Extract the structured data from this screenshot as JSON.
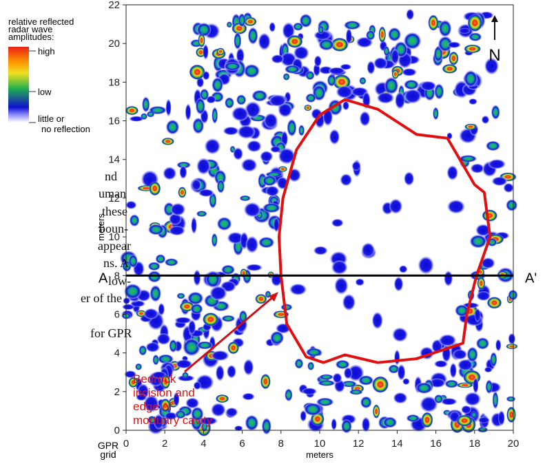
{
  "chart_data": {
    "type": "heatmap",
    "xlabel": "meters",
    "ylabel": "meters",
    "corner_label": [
      "GPR",
      "grid"
    ],
    "xlim": [
      0,
      20
    ],
    "ylim": [
      0,
      22
    ],
    "xticks": [
      0,
      2,
      4,
      6,
      8,
      10,
      12,
      14,
      16,
      18,
      20
    ],
    "yticks": [
      0,
      2,
      4,
      6,
      8,
      10,
      12,
      14,
      16,
      18,
      20,
      22
    ],
    "legend": {
      "title": [
        "relative reflected",
        "radar wave",
        "amplitudes:"
      ],
      "high": "high",
      "low": "low",
      "none": [
        "little or",
        "no reflection"
      ]
    },
    "section": {
      "start": "A",
      "end": "A'",
      "y": 8
    },
    "north": "N",
    "annotation": [
      "Bedrock",
      "incision and",
      "edge of",
      "mortuary cavity"
    ],
    "side_text": [
      "nd",
      "uman",
      "these",
      "boun-",
      "appear",
      "ns. A",
      "low-",
      "er of the",
      "for GPR"
    ]
  }
}
